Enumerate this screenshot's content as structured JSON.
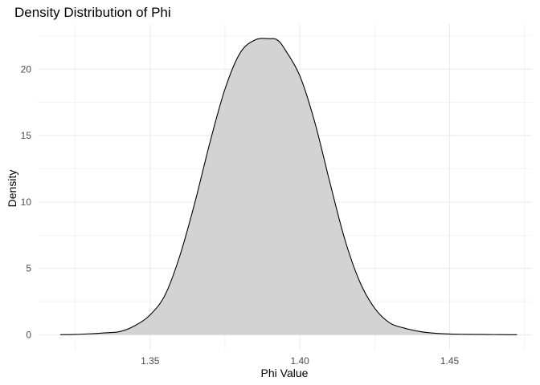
{
  "chart_data": {
    "type": "area",
    "title": "Density Distribution of Phi",
    "xlabel": "Phi Value",
    "ylabel": "Density",
    "xlim": [
      1.3125,
      1.4775
    ],
    "ylim": [
      -1.12,
      23.4
    ],
    "x_ticks": [
      1.35,
      1.4,
      1.45
    ],
    "x_tick_labels": [
      "1.35",
      "1.40",
      "1.45"
    ],
    "y_ticks": [
      0,
      5,
      10,
      15,
      20
    ],
    "y_tick_labels": [
      "0",
      "5",
      "10",
      "15",
      "20"
    ],
    "grid": true,
    "legend": "none",
    "fill_color": "#d3d3d3",
    "line_color": "#000000",
    "grid_color": "#ebebeb",
    "x": [
      1.32,
      1.325,
      1.33,
      1.335,
      1.34,
      1.345,
      1.35,
      1.355,
      1.36,
      1.365,
      1.37,
      1.375,
      1.38,
      1.385,
      1.39,
      1.3925,
      1.395,
      1.4,
      1.405,
      1.41,
      1.415,
      1.42,
      1.425,
      1.43,
      1.435,
      1.44,
      1.445,
      1.45,
      1.455,
      1.46,
      1.465,
      1.47,
      1.4725
    ],
    "y": [
      0.01,
      0.03,
      0.08,
      0.15,
      0.25,
      0.7,
      1.5,
      3.0,
      6.0,
      10.0,
      14.5,
      18.5,
      21.2,
      22.2,
      22.3,
      22.2,
      21.5,
      19.5,
      16.0,
      11.5,
      7.2,
      4.0,
      2.0,
      0.9,
      0.5,
      0.25,
      0.12,
      0.06,
      0.04,
      0.03,
      0.02,
      0.01,
      0.01
    ]
  }
}
